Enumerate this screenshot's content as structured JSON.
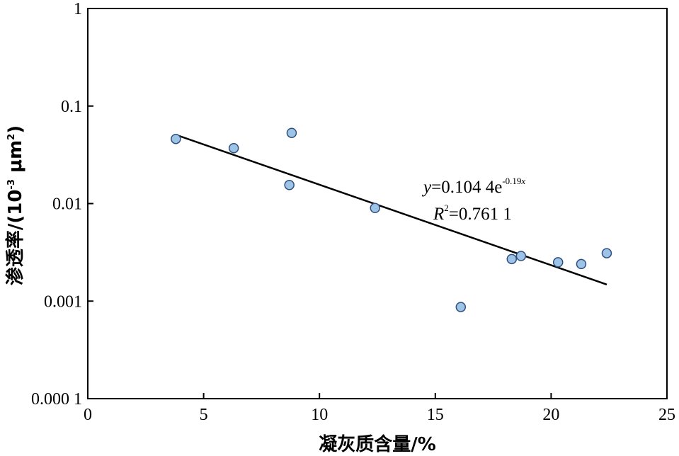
{
  "chart_data": {
    "type": "scatter",
    "x_axis": {
      "label": "凝灰质含量/%",
      "range": [
        0,
        25
      ],
      "ticks": [
        0,
        5,
        10,
        15,
        20,
        25
      ],
      "tick_labels": [
        "0",
        "5",
        "10",
        "15",
        "20",
        "25"
      ]
    },
    "y_axis": {
      "label_main": "渗透率/(10",
      "label_exp": "-3",
      "label_unit": " μm",
      "label_exp2": "2",
      "label_close": ")",
      "scale": "log",
      "range": [
        0.0001,
        1
      ],
      "ticks": [
        0.0001,
        0.001,
        0.01,
        0.1,
        1
      ],
      "tick_labels": [
        "0.000 1",
        "0.001",
        "0.01",
        "0.1",
        "1"
      ]
    },
    "points": [
      {
        "x": 3.8,
        "y": 0.046
      },
      {
        "x": 6.3,
        "y": 0.037
      },
      {
        "x": 8.7,
        "y": 0.0155
      },
      {
        "x": 8.8,
        "y": 0.053
      },
      {
        "x": 12.4,
        "y": 0.009
      },
      {
        "x": 16.1,
        "y": 0.00087
      },
      {
        "x": 18.3,
        "y": 0.0027
      },
      {
        "x": 18.7,
        "y": 0.0029
      },
      {
        "x": 20.3,
        "y": 0.0025
      },
      {
        "x": 21.3,
        "y": 0.0024
      },
      {
        "x": 22.4,
        "y": 0.0031
      }
    ],
    "trendline": {
      "type": "exponential",
      "a": 0.1044,
      "b": -0.19,
      "x_range": [
        3.8,
        22.4
      ]
    },
    "equation": {
      "y_var": "y",
      "eq_text": "=0.104 4e",
      "eq_exp": "-0.19",
      "eq_exp_var": "x",
      "r_var": "R",
      "r_exp": "2",
      "r_text": "=0.761 1"
    },
    "grid": false,
    "legend": "none",
    "colors": {
      "marker_fill": "#9dc3e6",
      "marker_stroke": "#2f4f7f",
      "line": "#000000",
      "axis": "#000000"
    }
  }
}
